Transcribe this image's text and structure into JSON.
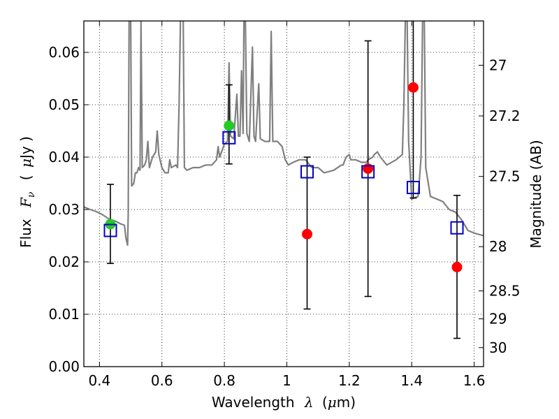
{
  "chart_data": {
    "type": "scatter",
    "title": "",
    "xlabel": {
      "prefix": "Wavelength",
      "symbol": "λ",
      "unit_open": "(",
      "unit_mu": "μ",
      "unit_rest": "m)"
    },
    "ylabel": {
      "prefix": "Flux",
      "symbol": "F",
      "subscript": "ν",
      "unit_open": "(",
      "unit_mu": "μ",
      "unit_rest": "Jy )"
    },
    "y2label": "Magnitude (AB)",
    "xlim": [
      0.35,
      1.63
    ],
    "ylim": [
      0.0,
      0.066
    ],
    "grid": true,
    "x_ticks": [
      {
        "value": 0.4,
        "label": "0.4"
      },
      {
        "value": 0.6,
        "label": "0.6"
      },
      {
        "value": 0.8,
        "label": "0.8"
      },
      {
        "value": 1.0,
        "label": "1"
      },
      {
        "value": 1.2,
        "label": "1.2"
      },
      {
        "value": 1.4,
        "label": "1.4"
      },
      {
        "value": 1.6,
        "label": "1.6"
      }
    ],
    "y_ticks": [
      {
        "value": 0.0,
        "label": "0.00"
      },
      {
        "value": 0.01,
        "label": "0.01"
      },
      {
        "value": 0.02,
        "label": "0.02"
      },
      {
        "value": 0.03,
        "label": "0.03"
      },
      {
        "value": 0.04,
        "label": "0.04"
      },
      {
        "value": 0.05,
        "label": "0.05"
      },
      {
        "value": 0.06,
        "label": "0.06"
      }
    ],
    "y2_ticks": [
      {
        "value": 27,
        "label": "27"
      },
      {
        "value": 27.2,
        "label": "27.2"
      },
      {
        "value": 27.5,
        "label": "27.5"
      },
      {
        "value": 28,
        "label": "28"
      },
      {
        "value": 28.5,
        "label": "28.5"
      },
      {
        "value": 29,
        "label": "29"
      },
      {
        "value": 30,
        "label": "30"
      }
    ],
    "model_spectrum": {
      "color": "#808080",
      "points": [
        [
          0.35,
          0.0305
        ],
        [
          0.37,
          0.03
        ],
        [
          0.39,
          0.0296
        ],
        [
          0.41,
          0.029
        ],
        [
          0.43,
          0.0282
        ],
        [
          0.45,
          0.0278
        ],
        [
          0.47,
          0.0272
        ],
        [
          0.48,
          0.027
        ],
        [
          0.485,
          0.0245
        ],
        [
          0.49,
          0.0232
        ],
        [
          0.492,
          0.029
        ],
        [
          0.495,
          0.068
        ],
        [
          0.5,
          0.068
        ],
        [
          0.503,
          0.0345
        ],
        [
          0.51,
          0.035
        ],
        [
          0.515,
          0.037
        ],
        [
          0.52,
          0.037
        ],
        [
          0.525,
          0.038
        ],
        [
          0.53,
          0.0375
        ],
        [
          0.533,
          0.066
        ],
        [
          0.537,
          0.038
        ],
        [
          0.545,
          0.0385
        ],
        [
          0.55,
          0.0395
        ],
        [
          0.555,
          0.043
        ],
        [
          0.56,
          0.038
        ],
        [
          0.57,
          0.04
        ],
        [
          0.58,
          0.041
        ],
        [
          0.585,
          0.045
        ],
        [
          0.59,
          0.0405
        ],
        [
          0.6,
          0.038
        ],
        [
          0.61,
          0.037
        ],
        [
          0.62,
          0.037
        ],
        [
          0.625,
          0.0395
        ],
        [
          0.63,
          0.038
        ],
        [
          0.645,
          0.0385
        ],
        [
          0.65,
          0.038
        ],
        [
          0.655,
          0.05
        ],
        [
          0.66,
          0.068
        ],
        [
          0.668,
          0.068
        ],
        [
          0.672,
          0.038
        ],
        [
          0.68,
          0.0375
        ],
        [
          0.7,
          0.038
        ],
        [
          0.72,
          0.038
        ],
        [
          0.74,
          0.0385
        ],
        [
          0.76,
          0.0385
        ],
        [
          0.775,
          0.0395
        ],
        [
          0.78,
          0.042
        ],
        [
          0.785,
          0.04
        ],
        [
          0.8,
          0.0425
        ],
        [
          0.81,
          0.043
        ],
        [
          0.815,
          0.058
        ],
        [
          0.82,
          0.044
        ],
        [
          0.83,
          0.0435
        ],
        [
          0.84,
          0.052
        ],
        [
          0.845,
          0.044
        ],
        [
          0.85,
          0.044
        ],
        [
          0.855,
          0.0565
        ],
        [
          0.86,
          0.0445
        ],
        [
          0.863,
          0.068
        ],
        [
          0.867,
          0.068
        ],
        [
          0.872,
          0.0445
        ],
        [
          0.88,
          0.043
        ],
        [
          0.89,
          0.061
        ],
        [
          0.895,
          0.044
        ],
        [
          0.9,
          0.043
        ],
        [
          0.91,
          0.054
        ],
        [
          0.915,
          0.0435
        ],
        [
          0.93,
          0.043
        ],
        [
          0.945,
          0.043
        ],
        [
          0.95,
          0.064
        ],
        [
          0.955,
          0.043
        ],
        [
          0.97,
          0.043
        ],
        [
          0.985,
          0.042
        ],
        [
          0.995,
          0.0395
        ],
        [
          1.005,
          0.0385
        ],
        [
          1.02,
          0.039
        ],
        [
          1.04,
          0.0395
        ],
        [
          1.06,
          0.0395
        ],
        [
          1.08,
          0.038
        ],
        [
          1.1,
          0.038
        ],
        [
          1.12,
          0.037
        ],
        [
          1.15,
          0.0375
        ],
        [
          1.175,
          0.0385
        ],
        [
          1.18,
          0.0385
        ],
        [
          1.19,
          0.04
        ],
        [
          1.2,
          0.0405
        ],
        [
          1.205,
          0.0395
        ],
        [
          1.22,
          0.0395
        ],
        [
          1.24,
          0.039
        ],
        [
          1.255,
          0.039
        ],
        [
          1.26,
          0.0395
        ],
        [
          1.275,
          0.04
        ],
        [
          1.28,
          0.0405
        ],
        [
          1.29,
          0.041
        ],
        [
          1.3,
          0.04
        ],
        [
          1.32,
          0.0385
        ],
        [
          1.35,
          0.0395
        ],
        [
          1.37,
          0.0405
        ],
        [
          1.375,
          0.05
        ],
        [
          1.38,
          0.068
        ],
        [
          1.385,
          0.068
        ],
        [
          1.39,
          0.043
        ],
        [
          1.4,
          0.032
        ],
        [
          1.42,
          0.0325
        ],
        [
          1.425,
          0.036
        ],
        [
          1.43,
          0.04
        ],
        [
          1.435,
          0.068
        ],
        [
          1.44,
          0.068
        ],
        [
          1.445,
          0.038
        ],
        [
          1.46,
          0.0325
        ],
        [
          1.48,
          0.032
        ],
        [
          1.5,
          0.0315
        ],
        [
          1.52,
          0.03
        ],
        [
          1.54,
          0.0295
        ],
        [
          1.56,
          0.028
        ],
        [
          1.58,
          0.026
        ],
        [
          1.6,
          0.0255
        ],
        [
          1.63,
          0.025
        ]
      ]
    },
    "series": [
      {
        "marker": "circle",
        "color": "#22cc22",
        "points": [
          {
            "x": 0.435,
            "y": 0.0272
          },
          {
            "x": 0.815,
            "y": 0.046
          }
        ]
      },
      {
        "marker": "circle",
        "color": "#ff0000",
        "points": [
          {
            "x": 1.065,
            "y": 0.0253
          },
          {
            "x": 1.26,
            "y": 0.0378
          },
          {
            "x": 1.405,
            "y": 0.0533
          },
          {
            "x": 1.545,
            "y": 0.019
          }
        ]
      },
      {
        "marker": "open-square",
        "color": "#0000cc",
        "points": [
          {
            "x": 0.435,
            "y": 0.026
          },
          {
            "x": 0.815,
            "y": 0.0437
          },
          {
            "x": 1.065,
            "y": 0.0372
          },
          {
            "x": 1.26,
            "y": 0.0372
          },
          {
            "x": 1.405,
            "y": 0.0342
          },
          {
            "x": 1.545,
            "y": 0.0265
          }
        ]
      }
    ],
    "error_bars": [
      {
        "x": 0.435,
        "low": 0.0197,
        "high": 0.0348
      },
      {
        "x": 0.815,
        "low": 0.0387,
        "high": 0.0538
      },
      {
        "x": 1.065,
        "low": 0.011,
        "high": 0.04
      },
      {
        "x": 1.26,
        "low": 0.0134,
        "high": 0.0622
      },
      {
        "x": 1.405,
        "low": 0.0322,
        "high": 0.068
      },
      {
        "x": 1.545,
        "low": 0.0054,
        "high": 0.0327
      }
    ]
  }
}
